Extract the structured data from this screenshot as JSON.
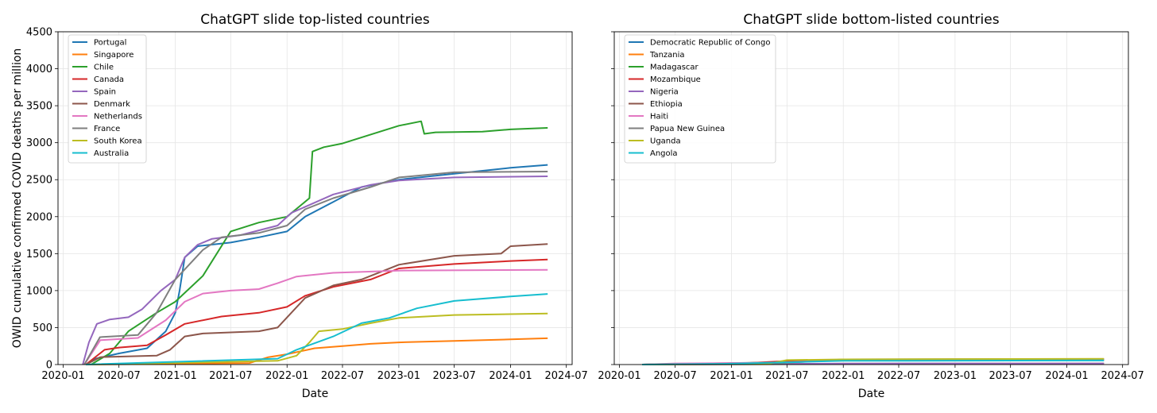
{
  "chart_data": [
    {
      "type": "line",
      "title": "ChatGPT slide top-listed countries",
      "xlabel": "Date",
      "ylabel": "OWID cumulative confirmed COVID deaths per million",
      "ylim": [
        0,
        4500
      ],
      "xlim": [
        "2019-12-15",
        "2024-07-20"
      ],
      "grid": true,
      "legend": "top-left",
      "x_ticks": [
        "2020-01",
        "2020-07",
        "2021-01",
        "2021-07",
        "2022-01",
        "2022-07",
        "2023-01",
        "2023-07",
        "2024-01",
        "2024-07"
      ],
      "y_ticks": [
        0,
        500,
        1000,
        1500,
        2000,
        2500,
        3000,
        3500,
        4000,
        4500
      ],
      "series": [
        {
          "name": "Portugal",
          "color": "#1f77b4",
          "points": [
            [
              "2020-03-15",
              0
            ],
            [
              "2020-04-15",
              80
            ],
            [
              "2020-07-01",
              150
            ],
            [
              "2020-10-01",
              220
            ],
            [
              "2020-12-01",
              450
            ],
            [
              "2021-01-01",
              700
            ],
            [
              "2021-01-15",
              1000
            ],
            [
              "2021-02-01",
              1450
            ],
            [
              "2021-03-15",
              1600
            ],
            [
              "2021-07-01",
              1650
            ],
            [
              "2021-10-01",
              1720
            ],
            [
              "2022-01-01",
              1800
            ],
            [
              "2022-03-01",
              2000
            ],
            [
              "2022-06-01",
              2200
            ],
            [
              "2022-09-01",
              2400
            ],
            [
              "2023-01-01",
              2500
            ],
            [
              "2023-07-01",
              2580
            ],
            [
              "2024-01-01",
              2660
            ],
            [
              "2024-05-01",
              2700
            ]
          ]
        },
        {
          "name": "Singapore",
          "color": "#ff7f0e",
          "points": [
            [
              "2020-03-15",
              0
            ],
            [
              "2021-09-01",
              20
            ],
            [
              "2021-11-01",
              100
            ],
            [
              "2022-01-01",
              140
            ],
            [
              "2022-04-01",
              220
            ],
            [
              "2022-07-01",
              250
            ],
            [
              "2022-10-01",
              280
            ],
            [
              "2023-01-01",
              300
            ],
            [
              "2023-07-01",
              320
            ],
            [
              "2024-01-01",
              340
            ],
            [
              "2024-05-01",
              355
            ]
          ]
        },
        {
          "name": "Chile",
          "color": "#2ca02c",
          "points": [
            [
              "2020-04-01",
              0
            ],
            [
              "2020-06-01",
              150
            ],
            [
              "2020-08-01",
              450
            ],
            [
              "2020-11-01",
              700
            ],
            [
              "2021-01-01",
              850
            ],
            [
              "2021-04-01",
              1200
            ],
            [
              "2021-07-01",
              1800
            ],
            [
              "2021-10-01",
              1920
            ],
            [
              "2022-01-01",
              2000
            ],
            [
              "2022-03-15",
              2250
            ],
            [
              "2022-03-25",
              2880
            ],
            [
              "2022-05-01",
              2940
            ],
            [
              "2022-07-01",
              2990
            ],
            [
              "2022-10-01",
              3110
            ],
            [
              "2023-01-01",
              3230
            ],
            [
              "2023-03-15",
              3290
            ],
            [
              "2023-03-25",
              3120
            ],
            [
              "2023-05-01",
              3140
            ],
            [
              "2023-10-01",
              3150
            ],
            [
              "2024-01-01",
              3180
            ],
            [
              "2024-05-01",
              3200
            ]
          ]
        },
        {
          "name": "Canada",
          "color": "#d62728",
          "points": [
            [
              "2020-03-15",
              0
            ],
            [
              "2020-05-15",
              200
            ],
            [
              "2020-07-01",
              230
            ],
            [
              "2020-10-01",
              260
            ],
            [
              "2020-12-01",
              400
            ],
            [
              "2021-02-01",
              550
            ],
            [
              "2021-06-01",
              650
            ],
            [
              "2021-10-01",
              700
            ],
            [
              "2022-01-01",
              780
            ],
            [
              "2022-03-01",
              930
            ],
            [
              "2022-06-01",
              1050
            ],
            [
              "2022-10-01",
              1150
            ],
            [
              "2023-01-01",
              1300
            ],
            [
              "2023-07-01",
              1360
            ],
            [
              "2024-01-01",
              1400
            ],
            [
              "2024-05-01",
              1420
            ]
          ]
        },
        {
          "name": "Spain",
          "color": "#9467bd",
          "points": [
            [
              "2020-03-05",
              0
            ],
            [
              "2020-03-25",
              300
            ],
            [
              "2020-04-20",
              550
            ],
            [
              "2020-06-01",
              610
            ],
            [
              "2020-08-01",
              640
            ],
            [
              "2020-09-15",
              750
            ],
            [
              "2020-11-15",
              1000
            ],
            [
              "2021-01-01",
              1150
            ],
            [
              "2021-02-01",
              1450
            ],
            [
              "2021-03-15",
              1620
            ],
            [
              "2021-05-01",
              1700
            ],
            [
              "2021-08-01",
              1750
            ],
            [
              "2021-12-01",
              1880
            ],
            [
              "2022-01-15",
              2050
            ],
            [
              "2022-06-01",
              2300
            ],
            [
              "2022-10-01",
              2430
            ],
            [
              "2023-01-01",
              2490
            ],
            [
              "2023-07-01",
              2530
            ],
            [
              "2024-05-01",
              2545
            ]
          ]
        },
        {
          "name": "Denmark",
          "color": "#8c564b",
          "points": [
            [
              "2020-03-15",
              0
            ],
            [
              "2020-05-01",
              100
            ],
            [
              "2020-11-01",
              120
            ],
            [
              "2020-12-15",
              200
            ],
            [
              "2021-02-01",
              380
            ],
            [
              "2021-04-01",
              420
            ],
            [
              "2021-10-01",
              450
            ],
            [
              "2021-12-01",
              500
            ],
            [
              "2022-03-01",
              900
            ],
            [
              "2022-06-01",
              1070
            ],
            [
              "2022-09-01",
              1150
            ],
            [
              "2023-01-01",
              1350
            ],
            [
              "2023-07-01",
              1470
            ],
            [
              "2023-12-01",
              1500
            ],
            [
              "2024-01-01",
              1600
            ],
            [
              "2024-05-01",
              1630
            ]
          ]
        },
        {
          "name": "Netherlands",
          "color": "#e377c2",
          "points": [
            [
              "2020-03-10",
              0
            ],
            [
              "2020-05-01",
              330
            ],
            [
              "2020-09-01",
              360
            ],
            [
              "2020-12-01",
              600
            ],
            [
              "2021-02-01",
              850
            ],
            [
              "2021-04-01",
              960
            ],
            [
              "2021-07-01",
              1000
            ],
            [
              "2021-10-01",
              1020
            ],
            [
              "2021-12-01",
              1100
            ],
            [
              "2022-02-01",
              1190
            ],
            [
              "2022-06-01",
              1240
            ],
            [
              "2023-01-01",
              1270
            ],
            [
              "2024-05-01",
              1280
            ]
          ]
        },
        {
          "name": "France",
          "color": "#7f7f7f",
          "points": [
            [
              "2020-03-10",
              0
            ],
            [
              "2020-04-30",
              370
            ],
            [
              "2020-09-01",
              400
            ],
            [
              "2020-11-01",
              700
            ],
            [
              "2021-01-01",
              1150
            ],
            [
              "2021-04-01",
              1550
            ],
            [
              "2021-06-01",
              1720
            ],
            [
              "2021-10-01",
              1780
            ],
            [
              "2022-01-01",
              1880
            ],
            [
              "2022-03-01",
              2100
            ],
            [
              "2022-06-01",
              2250
            ],
            [
              "2022-10-01",
              2400
            ],
            [
              "2023-01-01",
              2530
            ],
            [
              "2023-07-01",
              2600
            ],
            [
              "2024-05-01",
              2610
            ]
          ]
        },
        {
          "name": "South Korea",
          "color": "#bcbd22",
          "points": [
            [
              "2020-03-15",
              0
            ],
            [
              "2021-12-01",
              50
            ],
            [
              "2022-02-01",
              120
            ],
            [
              "2022-03-15",
              300
            ],
            [
              "2022-04-15",
              450
            ],
            [
              "2022-07-01",
              480
            ],
            [
              "2022-10-01",
              560
            ],
            [
              "2023-01-01",
              630
            ],
            [
              "2023-07-01",
              670
            ],
            [
              "2024-05-01",
              690
            ]
          ]
        },
        {
          "name": "Australia",
          "color": "#17becf",
          "points": [
            [
              "2020-03-15",
              0
            ],
            [
              "2021-12-01",
              80
            ],
            [
              "2022-02-01",
              200
            ],
            [
              "2022-06-01",
              380
            ],
            [
              "2022-09-01",
              560
            ],
            [
              "2022-12-01",
              630
            ],
            [
              "2023-03-01",
              760
            ],
            [
              "2023-07-01",
              860
            ],
            [
              "2024-01-01",
              920
            ],
            [
              "2024-05-01",
              955
            ]
          ]
        }
      ]
    },
    {
      "type": "line",
      "title": "ChatGPT slide bottom-listed countries",
      "xlabel": "Date",
      "ylabel": "",
      "ylim": [
        0,
        4500
      ],
      "xlim": [
        "2019-12-15",
        "2024-07-20"
      ],
      "grid": true,
      "legend": "top-left",
      "x_ticks": [
        "2020-01",
        "2020-07",
        "2021-01",
        "2021-07",
        "2022-01",
        "2022-07",
        "2023-01",
        "2023-07",
        "2024-01",
        "2024-07"
      ],
      "series": [
        {
          "name": "Democratic Republic of Congo",
          "color": "#1f77b4",
          "points": [
            [
              "2020-03-15",
              0
            ],
            [
              "2021-06-01",
              5
            ],
            [
              "2022-01-01",
              10
            ],
            [
              "2024-05-01",
              12
            ]
          ]
        },
        {
          "name": "Tanzania",
          "color": "#ff7f0e",
          "points": [
            [
              "2020-03-15",
              0
            ],
            [
              "2021-06-01",
              5
            ],
            [
              "2022-01-01",
              12
            ],
            [
              "2024-05-01",
              14
            ]
          ]
        },
        {
          "name": "Madagascar",
          "color": "#2ca02c",
          "points": [
            [
              "2020-03-15",
              0
            ],
            [
              "2020-09-01",
              8
            ],
            [
              "2021-06-01",
              30
            ],
            [
              "2021-08-01",
              45
            ],
            [
              "2022-01-01",
              55
            ],
            [
              "2022-06-01",
              60
            ],
            [
              "2024-05-01",
              62
            ]
          ]
        },
        {
          "name": "Mozambique",
          "color": "#d62728",
          "points": [
            [
              "2020-03-15",
              0
            ],
            [
              "2021-02-01",
              15
            ],
            [
              "2021-08-01",
              55
            ],
            [
              "2022-01-01",
              65
            ],
            [
              "2022-06-01",
              70
            ],
            [
              "2024-05-01",
              72
            ]
          ]
        },
        {
          "name": "Nigeria",
          "color": "#9467bd",
          "points": [
            [
              "2020-03-15",
              0
            ],
            [
              "2021-06-01",
              8
            ],
            [
              "2022-01-01",
              14
            ],
            [
              "2024-05-01",
              15
            ]
          ]
        },
        {
          "name": "Ethiopia",
          "color": "#8c564b",
          "points": [
            [
              "2020-03-15",
              0
            ],
            [
              "2021-06-01",
              30
            ],
            [
              "2022-01-01",
              55
            ],
            [
              "2024-05-01",
              60
            ]
          ]
        },
        {
          "name": "Haiti",
          "color": "#e377c2",
          "points": [
            [
              "2020-03-15",
              0
            ],
            [
              "2020-07-01",
              15
            ],
            [
              "2021-06-01",
              25
            ],
            [
              "2022-01-01",
              60
            ],
            [
              "2024-05-01",
              75
            ]
          ]
        },
        {
          "name": "Papua New Guinea",
          "color": "#7f7f7f",
          "points": [
            [
              "2020-03-15",
              0
            ],
            [
              "2021-06-01",
              15
            ],
            [
              "2022-01-01",
              70
            ],
            [
              "2024-05-01",
              75
            ]
          ]
        },
        {
          "name": "Uganda",
          "color": "#bcbd22",
          "points": [
            [
              "2020-03-15",
              0
            ],
            [
              "2021-05-01",
              10
            ],
            [
              "2021-07-01",
              60
            ],
            [
              "2022-01-01",
              70
            ],
            [
              "2024-05-01",
              78
            ]
          ]
        },
        {
          "name": "Angola",
          "color": "#17becf",
          "points": [
            [
              "2020-03-15",
              0
            ],
            [
              "2020-12-01",
              10
            ],
            [
              "2021-07-01",
              30
            ],
            [
              "2022-01-01",
              50
            ],
            [
              "2024-05-01",
              55
            ]
          ]
        }
      ]
    }
  ]
}
